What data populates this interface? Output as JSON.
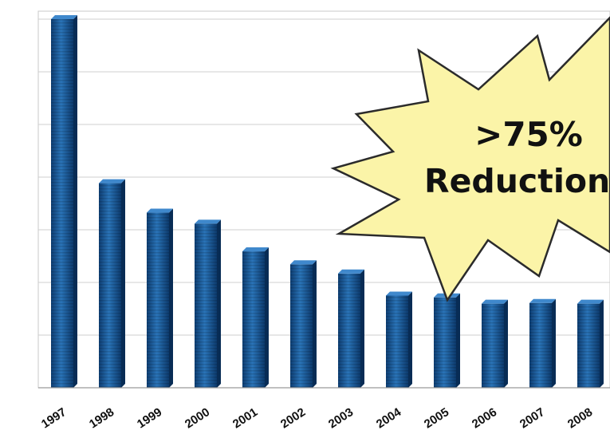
{
  "chart_data": {
    "type": "bar",
    "title": "",
    "xlabel": "",
    "ylabel": "",
    "categories": [
      "1997",
      "1998",
      "1999",
      "2000",
      "2001",
      "2002",
      "2003",
      "2004",
      "2005",
      "2006",
      "2007",
      "2008"
    ],
    "values": [
      100,
      55.5,
      47.5,
      44.5,
      37,
      33.5,
      31,
      25,
      24.5,
      22.8,
      23,
      22.8
    ],
    "ylim": [
      0,
      100
    ],
    "grid": true,
    "bar_color": "#1f5a96",
    "annotation": {
      "line1": ">75%",
      "line2": "Reduction",
      "fill_color": "#fbf4a8"
    }
  }
}
